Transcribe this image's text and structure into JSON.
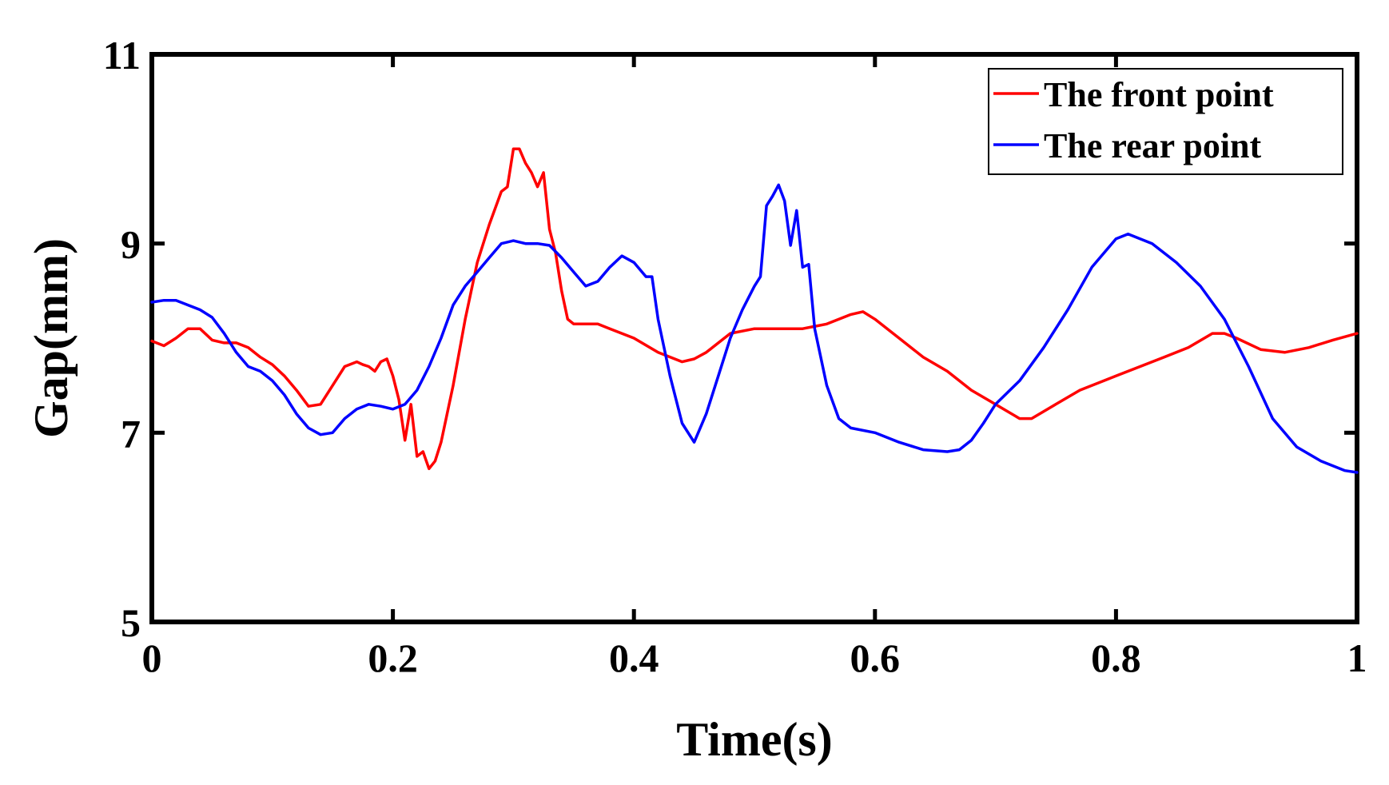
{
  "chart_data": {
    "type": "line",
    "title": "",
    "xlabel": "Time(s)",
    "ylabel": "Gap(mm)",
    "xlim": [
      0,
      1
    ],
    "ylim": [
      5,
      11
    ],
    "xticks": [
      0,
      0.2,
      0.4,
      0.6,
      0.8,
      1
    ],
    "xtick_labels": [
      "0",
      "0.2",
      "0.4",
      "0.6",
      "0.8",
      "1"
    ],
    "yticks": [
      5,
      7,
      9,
      11
    ],
    "ytick_labels": [
      "5",
      "7",
      "9",
      "11"
    ],
    "grid": false,
    "legend_position": "top-right",
    "series": [
      {
        "name": "The front point",
        "color": "#ff0000",
        "x": [
          0,
          0.01,
          0.02,
          0.03,
          0.04,
          0.05,
          0.06,
          0.07,
          0.08,
          0.09,
          0.1,
          0.11,
          0.12,
          0.13,
          0.14,
          0.15,
          0.16,
          0.17,
          0.175,
          0.18,
          0.185,
          0.19,
          0.195,
          0.2,
          0.205,
          0.21,
          0.215,
          0.22,
          0.225,
          0.23,
          0.235,
          0.24,
          0.25,
          0.26,
          0.27,
          0.28,
          0.29,
          0.295,
          0.3,
          0.305,
          0.31,
          0.315,
          0.32,
          0.325,
          0.33,
          0.335,
          0.34,
          0.345,
          0.35,
          0.36,
          0.37,
          0.38,
          0.39,
          0.4,
          0.42,
          0.44,
          0.45,
          0.46,
          0.48,
          0.5,
          0.52,
          0.54,
          0.56,
          0.58,
          0.59,
          0.6,
          0.62,
          0.64,
          0.66,
          0.68,
          0.7,
          0.72,
          0.73,
          0.75,
          0.77,
          0.79,
          0.8,
          0.82,
          0.84,
          0.86,
          0.88,
          0.89,
          0.9,
          0.92,
          0.94,
          0.96,
          0.98,
          1.0
        ],
        "y": [
          7.97,
          7.92,
          8.0,
          8.1,
          8.1,
          7.98,
          7.95,
          7.95,
          7.9,
          7.8,
          7.72,
          7.6,
          7.45,
          7.28,
          7.3,
          7.5,
          7.7,
          7.75,
          7.72,
          7.7,
          7.65,
          7.75,
          7.78,
          7.6,
          7.35,
          6.92,
          7.3,
          6.75,
          6.8,
          6.62,
          6.7,
          6.9,
          7.5,
          8.2,
          8.8,
          9.2,
          9.55,
          9.6,
          10.0,
          10.0,
          9.85,
          9.75,
          9.6,
          9.75,
          9.15,
          8.9,
          8.5,
          8.2,
          8.15,
          8.15,
          8.15,
          8.1,
          8.05,
          8.0,
          7.85,
          7.75,
          7.78,
          7.85,
          8.05,
          8.1,
          8.1,
          8.1,
          8.15,
          8.25,
          8.28,
          8.2,
          8.0,
          7.8,
          7.65,
          7.45,
          7.3,
          7.15,
          7.15,
          7.3,
          7.45,
          7.55,
          7.6,
          7.7,
          7.8,
          7.9,
          8.05,
          8.05,
          8.0,
          7.88,
          7.85,
          7.9,
          7.98,
          8.05
        ]
      },
      {
        "name": "The rear point",
        "color": "#0000ff",
        "x": [
          0,
          0.01,
          0.02,
          0.03,
          0.04,
          0.05,
          0.06,
          0.07,
          0.08,
          0.09,
          0.1,
          0.11,
          0.12,
          0.13,
          0.14,
          0.15,
          0.16,
          0.17,
          0.18,
          0.19,
          0.2,
          0.21,
          0.22,
          0.23,
          0.24,
          0.25,
          0.26,
          0.27,
          0.28,
          0.29,
          0.3,
          0.31,
          0.32,
          0.33,
          0.34,
          0.35,
          0.36,
          0.37,
          0.38,
          0.39,
          0.4,
          0.41,
          0.415,
          0.42,
          0.43,
          0.44,
          0.45,
          0.46,
          0.47,
          0.48,
          0.49,
          0.5,
          0.505,
          0.51,
          0.515,
          0.52,
          0.525,
          0.53,
          0.535,
          0.54,
          0.545,
          0.55,
          0.56,
          0.57,
          0.58,
          0.6,
          0.62,
          0.64,
          0.66,
          0.67,
          0.68,
          0.69,
          0.7,
          0.72,
          0.74,
          0.76,
          0.78,
          0.8,
          0.81,
          0.83,
          0.85,
          0.87,
          0.89,
          0.91,
          0.93,
          0.95,
          0.97,
          0.99,
          1.0
        ],
        "y": [
          8.38,
          8.4,
          8.4,
          8.35,
          8.3,
          8.22,
          8.05,
          7.85,
          7.7,
          7.65,
          7.55,
          7.4,
          7.2,
          7.05,
          6.98,
          7.0,
          7.15,
          7.25,
          7.3,
          7.28,
          7.25,
          7.3,
          7.45,
          7.7,
          8.0,
          8.35,
          8.55,
          8.7,
          8.85,
          9.0,
          9.03,
          9.0,
          9.0,
          8.98,
          8.85,
          8.7,
          8.55,
          8.6,
          8.75,
          8.87,
          8.8,
          8.65,
          8.65,
          8.2,
          7.6,
          7.1,
          6.9,
          7.2,
          7.6,
          8.0,
          8.3,
          8.55,
          8.65,
          9.4,
          9.5,
          9.62,
          9.45,
          8.98,
          9.35,
          8.75,
          8.78,
          8.1,
          7.5,
          7.15,
          7.05,
          7.0,
          6.9,
          6.82,
          6.8,
          6.82,
          6.92,
          7.1,
          7.3,
          7.55,
          7.9,
          8.3,
          8.75,
          9.05,
          9.1,
          9.0,
          8.8,
          8.55,
          8.2,
          7.7,
          7.15,
          6.85,
          6.7,
          6.6,
          6.58
        ]
      }
    ]
  }
}
